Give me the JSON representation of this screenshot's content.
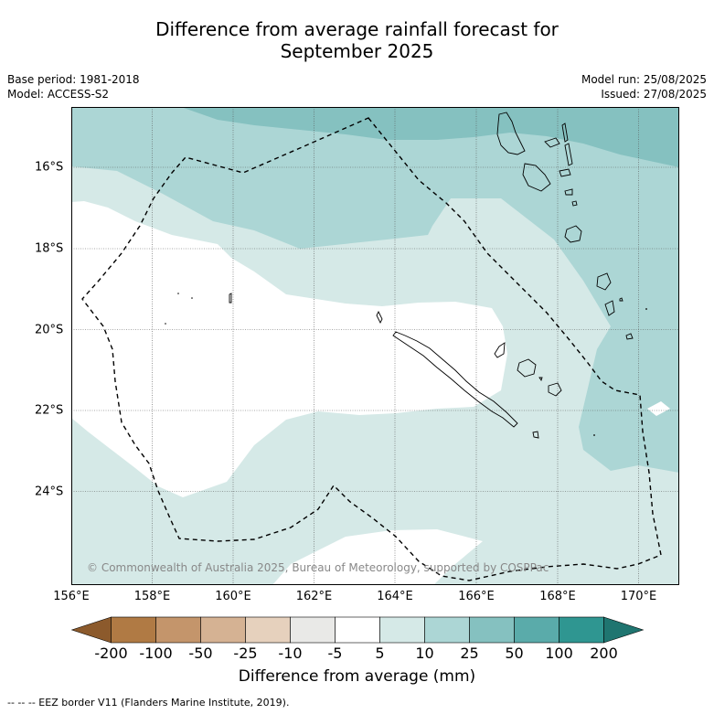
{
  "title_line1": "Difference from average rainfall forecast for",
  "title_line2": "September 2025",
  "meta": {
    "base_period": "Base period: 1981-2018",
    "model": "Model: ACCESS-S2",
    "model_run": "Model run: 25/08/2025",
    "issued": "Issued: 27/08/2025"
  },
  "map": {
    "longitude_labels": [
      "156°E",
      "158°E",
      "160°E",
      "162°E",
      "164°E",
      "166°E",
      "168°E",
      "170°E"
    ],
    "latitude_labels": [
      "16°S",
      "18°S",
      "20°S",
      "22°S",
      "24°S"
    ],
    "copyright": "© Commonwealth of Australia 2025, Bureau of Meteorology, supported by COSPPac"
  },
  "colorbar": {
    "tick_labels": [
      "-200",
      "-100",
      "-50",
      "-25",
      "-10",
      "-5",
      "5",
      "10",
      "25",
      "50",
      "100",
      "200"
    ],
    "colors": [
      "#8c5a2c",
      "#b07a44",
      "#c4956b",
      "#d5b293",
      "#e6d1bd",
      "#e9e9e7",
      "#ffffff",
      "#d5e9e7",
      "#acd6d5",
      "#85c1c0",
      "#5aabaa",
      "#2f9691",
      "#1f7570"
    ],
    "title": "Difference from average (mm)"
  },
  "footnote": "--  --  -- EEZ border V11 (Flanders Marine Institute, 2019)."
}
